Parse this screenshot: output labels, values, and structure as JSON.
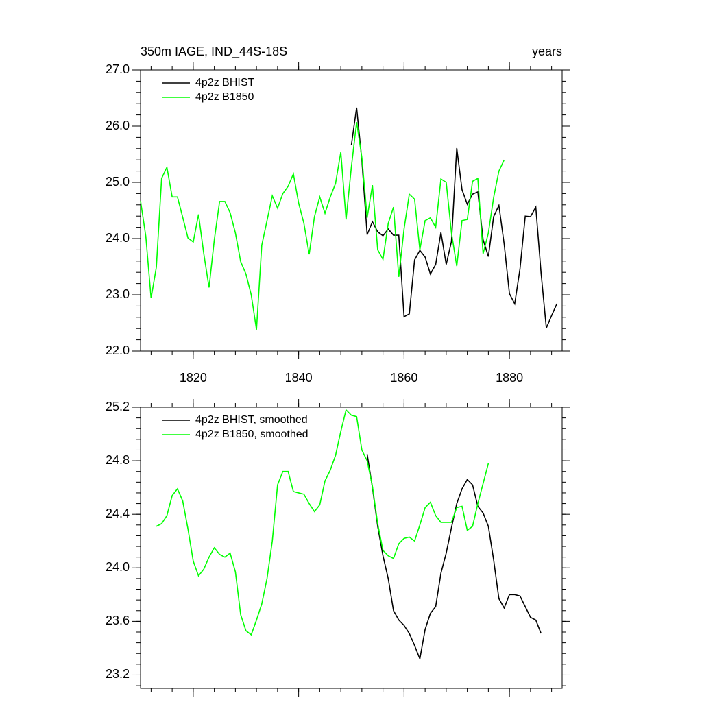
{
  "chart_data": [
    {
      "type": "line",
      "title": "350m IAGE, IND_44S-18S",
      "title_right": "years",
      "legend": "top-left",
      "x": [
        1810,
        1811,
        1812,
        1813,
        1814,
        1815,
        1816,
        1817,
        1818,
        1819,
        1820,
        1821,
        1822,
        1823,
        1824,
        1825,
        1826,
        1827,
        1828,
        1829,
        1830,
        1831,
        1832,
        1833,
        1834,
        1835,
        1836,
        1837,
        1838,
        1839,
        1840,
        1841,
        1842,
        1843,
        1844,
        1845,
        1846,
        1847,
        1848,
        1849,
        1850,
        1851,
        1852,
        1853,
        1854,
        1855,
        1856,
        1857,
        1858,
        1859,
        1860,
        1861,
        1862,
        1863,
        1864,
        1865,
        1866,
        1867,
        1868,
        1869,
        1870,
        1871,
        1872,
        1873,
        1874,
        1875,
        1876,
        1877,
        1878,
        1879,
        1880,
        1881,
        1882,
        1883,
        1884,
        1885,
        1886,
        1887,
        1888,
        1889
      ],
      "series": [
        {
          "name": "4p2z BHIST",
          "color": "#000000",
          "values": [
            null,
            null,
            null,
            null,
            null,
            null,
            null,
            null,
            null,
            null,
            null,
            null,
            null,
            null,
            null,
            null,
            null,
            null,
            null,
            null,
            null,
            null,
            null,
            null,
            null,
            null,
            null,
            null,
            null,
            null,
            null,
            null,
            null,
            null,
            null,
            null,
            null,
            null,
            null,
            null,
            25.66,
            26.33,
            25.39,
            24.07,
            24.3,
            24.12,
            24.05,
            24.17,
            24.06,
            24.06,
            22.61,
            22.66,
            23.62,
            23.79,
            23.67,
            23.37,
            23.54,
            24.11,
            23.54,
            23.95,
            25.61,
            24.87,
            24.61,
            24.79,
            24.83,
            23.98,
            23.68,
            24.39,
            24.59,
            23.9,
            23.02,
            22.84,
            23.46,
            24.4,
            24.39,
            24.56,
            23.39,
            22.41,
            22.63,
            22.84
          ]
        },
        {
          "name": "4p2z B1850",
          "color": "#00ff00",
          "values": [
            24.67,
            24.04,
            22.94,
            23.49,
            25.07,
            25.27,
            24.74,
            24.74,
            24.38,
            24.01,
            23.94,
            24.43,
            23.73,
            23.13,
            23.98,
            24.66,
            24.66,
            24.46,
            24.1,
            23.59,
            23.37,
            23.0,
            22.38,
            23.88,
            24.32,
            24.76,
            24.54,
            24.8,
            24.93,
            25.15,
            24.63,
            24.27,
            23.72,
            24.39,
            24.74,
            24.45,
            24.74,
            24.98,
            25.54,
            24.34,
            25.27,
            26.07,
            25.44,
            24.37,
            24.95,
            23.8,
            23.63,
            24.27,
            24.56,
            23.32,
            24.17,
            24.79,
            24.7,
            23.8,
            24.32,
            24.37,
            24.2,
            25.06,
            25.0,
            24.1,
            23.51,
            24.32,
            24.34,
            25.02,
            25.07,
            23.73,
            24.1,
            24.73,
            25.2,
            25.4,
            null,
            null,
            null,
            null,
            null,
            null,
            null,
            null,
            null,
            null
          ]
        }
      ],
      "xlim": [
        1810,
        1890
      ],
      "xticks": [
        1820,
        1840,
        1860,
        1880
      ],
      "xtick_labels": true,
      "ylim": [
        22,
        27
      ],
      "yticks": [
        {
          "value": 22,
          "label": "22.0"
        },
        {
          "value": 23,
          "label": "23.0"
        },
        {
          "value": 24,
          "label": "24.0"
        },
        {
          "value": 25,
          "label": "25.0"
        },
        {
          "value": 26,
          "label": "26.0"
        },
        {
          "value": 27,
          "label": "27.0"
        }
      ]
    },
    {
      "type": "line",
      "legend": "top-left",
      "x": [
        1810,
        1811,
        1812,
        1813,
        1814,
        1815,
        1816,
        1817,
        1818,
        1819,
        1820,
        1821,
        1822,
        1823,
        1824,
        1825,
        1826,
        1827,
        1828,
        1829,
        1830,
        1831,
        1832,
        1833,
        1834,
        1835,
        1836,
        1837,
        1838,
        1839,
        1840,
        1841,
        1842,
        1843,
        1844,
        1845,
        1846,
        1847,
        1848,
        1849,
        1850,
        1851,
        1852,
        1853,
        1854,
        1855,
        1856,
        1857,
        1858,
        1859,
        1860,
        1861,
        1862,
        1863,
        1864,
        1865,
        1866,
        1867,
        1868,
        1869,
        1870,
        1871,
        1872,
        1873,
        1874,
        1875,
        1876,
        1877,
        1878,
        1879,
        1880,
        1881,
        1882,
        1883,
        1884,
        1885,
        1886,
        1887,
        1888,
        1889
      ],
      "series": [
        {
          "name": "4p2z BHIST, smoothed",
          "color": "#000000",
          "values": [
            null,
            null,
            null,
            null,
            null,
            null,
            null,
            null,
            null,
            null,
            null,
            null,
            null,
            null,
            null,
            null,
            null,
            null,
            null,
            null,
            null,
            null,
            null,
            null,
            null,
            null,
            null,
            null,
            null,
            null,
            null,
            null,
            null,
            null,
            null,
            null,
            null,
            null,
            null,
            null,
            null,
            null,
            null,
            24.85,
            24.6,
            24.31,
            24.09,
            23.92,
            23.68,
            23.61,
            23.57,
            23.51,
            23.42,
            23.32,
            23.54,
            23.66,
            23.71,
            23.96,
            24.11,
            24.3,
            24.48,
            24.59,
            24.66,
            24.62,
            24.46,
            24.41,
            24.31,
            24.06,
            23.77,
            23.7,
            23.8,
            23.8,
            23.79,
            23.71,
            23.63,
            23.61,
            23.51,
            null,
            null,
            null
          ]
        },
        {
          "name": "4p2z B1850, smoothed",
          "color": "#00ff00",
          "values": [
            null,
            null,
            null,
            24.31,
            24.33,
            24.39,
            24.54,
            24.59,
            24.5,
            24.29,
            24.05,
            23.94,
            23.99,
            24.08,
            24.15,
            24.1,
            24.08,
            24.11,
            23.97,
            23.65,
            23.53,
            23.5,
            23.61,
            23.73,
            23.92,
            24.2,
            24.62,
            24.72,
            24.72,
            24.57,
            24.56,
            24.55,
            24.48,
            24.42,
            24.47,
            24.65,
            24.73,
            24.84,
            25.02,
            25.18,
            25.14,
            25.13,
            24.88,
            24.8,
            24.61,
            24.33,
            24.13,
            24.09,
            24.07,
            24.18,
            24.22,
            24.23,
            24.2,
            24.32,
            24.45,
            24.49,
            24.39,
            24.34,
            24.34,
            24.34,
            24.45,
            24.46,
            24.28,
            24.31,
            24.48,
            24.63,
            24.78,
            null,
            null,
            null,
            null,
            null,
            null,
            null,
            null,
            null,
            null,
            null,
            null,
            null
          ]
        }
      ],
      "xlim": [
        1810,
        1890
      ],
      "xticks": [
        1820,
        1840,
        1860,
        1880
      ],
      "xtick_labels": false,
      "ylim": [
        23.1,
        25.2
      ],
      "yticks": [
        23.2,
        23.6,
        {
          "value": 24,
          "label": "24.0"
        },
        24.4,
        24.8,
        25.2
      ]
    }
  ]
}
